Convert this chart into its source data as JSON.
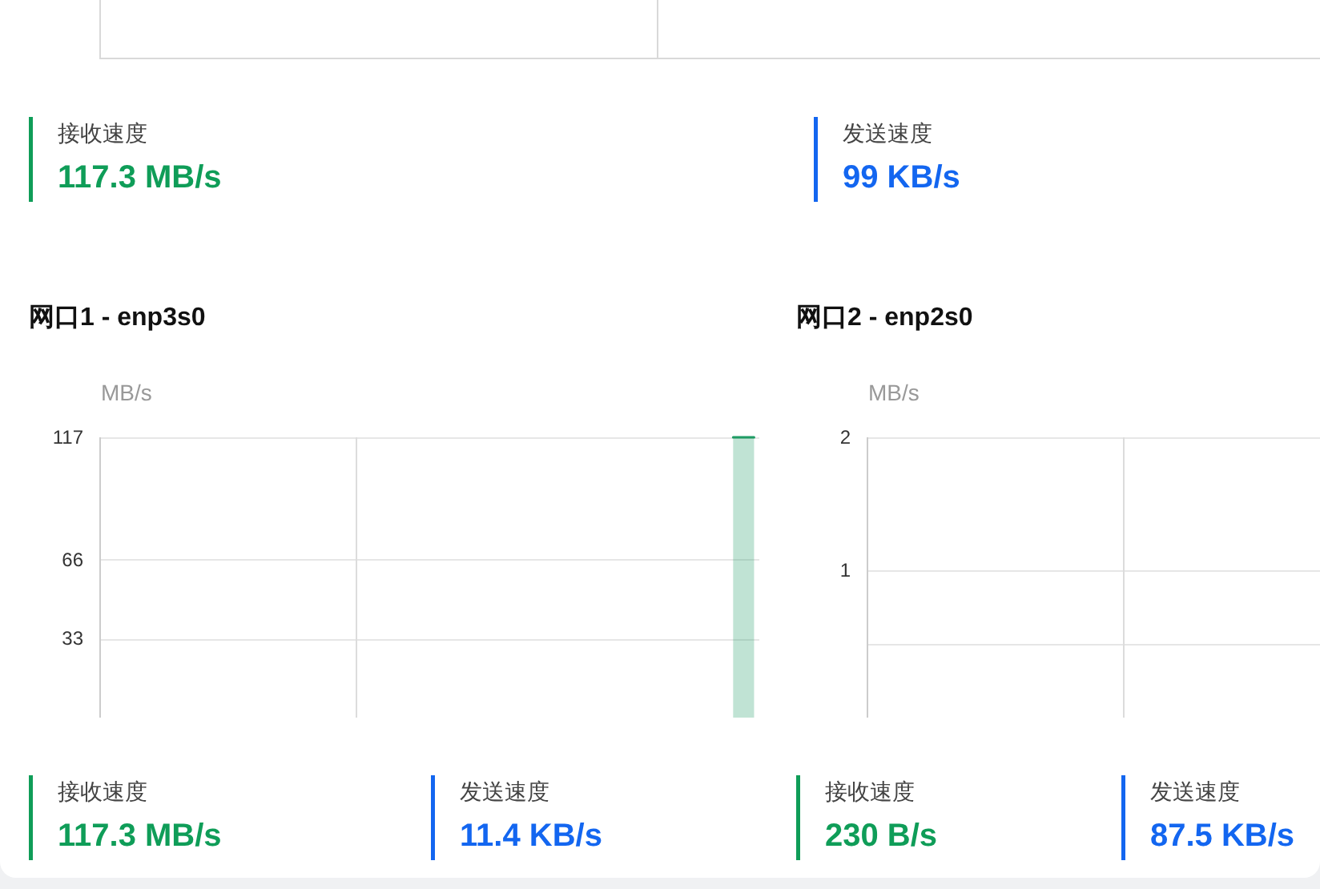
{
  "chart_data": [
    {
      "type": "other",
      "title": "接收速度",
      "annotations": [
        "117.3 MB/s"
      ],
      "color": "#0f9d58"
    },
    {
      "type": "other",
      "title": "发送速度",
      "annotations": [
        "99 KB/s"
      ],
      "color": "#1366f0"
    },
    {
      "type": "area",
      "title": "网口1 - enp3s0",
      "ylabel": "MB/s",
      "categories": [
        null,
        null,
        null,
        null,
        null,
        null,
        null,
        null,
        null,
        null,
        null,
        null,
        null,
        null,
        null,
        null,
        null,
        null,
        null,
        null,
        null,
        null,
        null,
        null,
        null,
        null,
        null,
        null,
        null,
        null,
        null,
        null,
        null,
        null,
        null,
        null,
        null,
        null,
        null,
        null,
        null,
        null,
        null,
        null,
        null,
        null,
        null,
        null,
        null,
        null,
        null,
        null,
        null,
        null,
        null,
        null,
        null,
        null,
        null,
        null,
        null,
        null,
        null
      ],
      "values": [
        null,
        null,
        null,
        null,
        null,
        null,
        null,
        null,
        null,
        null,
        null,
        null,
        null,
        null,
        null,
        null,
        null,
        null,
        null,
        null,
        null,
        null,
        null,
        null,
        null,
        null,
        null,
        null,
        null,
        null,
        null,
        null,
        null,
        null,
        null,
        null,
        null,
        null,
        null,
        null,
        null,
        null,
        null,
        null,
        null,
        null,
        null,
        null,
        null,
        null,
        null,
        null,
        null,
        null,
        null,
        null,
        null,
        null,
        null,
        null,
        117,
        117,
        117
      ],
      "color": "#1e9c64",
      "ylim": [
        0,
        117
      ],
      "yticks": [
        117,
        66,
        33
      ],
      "grid": true,
      "tick_labels": "y"
    },
    {
      "type": "area",
      "title": "网口2 - enp2s0",
      "ylabel": "MB/s",
      "categories": [
        null,
        null,
        null,
        null,
        null,
        null,
        null,
        null,
        null,
        null,
        null,
        null,
        null,
        null,
        null,
        null,
        null,
        null,
        null,
        null,
        null,
        null,
        null,
        null,
        null,
        null,
        null,
        null,
        null,
        null,
        null,
        null,
        null,
        null,
        null,
        null,
        null,
        null,
        null,
        null,
        null,
        null,
        null,
        null,
        null,
        null,
        null,
        null,
        null,
        null,
        null,
        null,
        null,
        null,
        null,
        null,
        null,
        null,
        null,
        null,
        null,
        null,
        null
      ],
      "values": [
        null,
        null,
        null,
        null,
        null,
        null,
        null,
        null,
        null,
        null,
        null,
        null,
        null,
        null,
        null,
        null,
        null,
        null,
        null,
        null,
        null,
        null,
        null,
        null,
        null,
        null,
        null,
        null,
        null,
        null,
        null,
        null,
        null,
        null,
        null,
        null,
        null,
        null,
        null,
        null,
        null,
        null,
        null,
        null,
        null,
        null,
        null,
        null,
        null,
        null,
        null,
        null,
        null,
        null,
        null,
        null,
        null,
        null,
        null,
        null,
        null,
        null,
        null
      ],
      "ylim": [
        0,
        1.9
      ],
      "yticks": [
        {
          "value": 1.9,
          "label": "2"
        },
        1,
        {
          "value": 0.5,
          "label": null
        }
      ],
      "grid": true,
      "tick_labels": "y"
    },
    {
      "type": "other",
      "title": "接收速度",
      "annotations": [
        "117.3 MB/s"
      ],
      "color": "#0f9d58"
    },
    {
      "type": "other",
      "title": "发送速度",
      "annotations": [
        "11.4 KB/s"
      ],
      "color": "#1366f0"
    },
    {
      "type": "other",
      "title": "接收速度",
      "annotations": [
        "230 B/s"
      ],
      "color": "#0f9d58"
    },
    {
      "type": "other",
      "title": "发送速度",
      "annotations": [
        "87.5 KB/s"
      ],
      "color": "#1366f0"
    }
  ]
}
